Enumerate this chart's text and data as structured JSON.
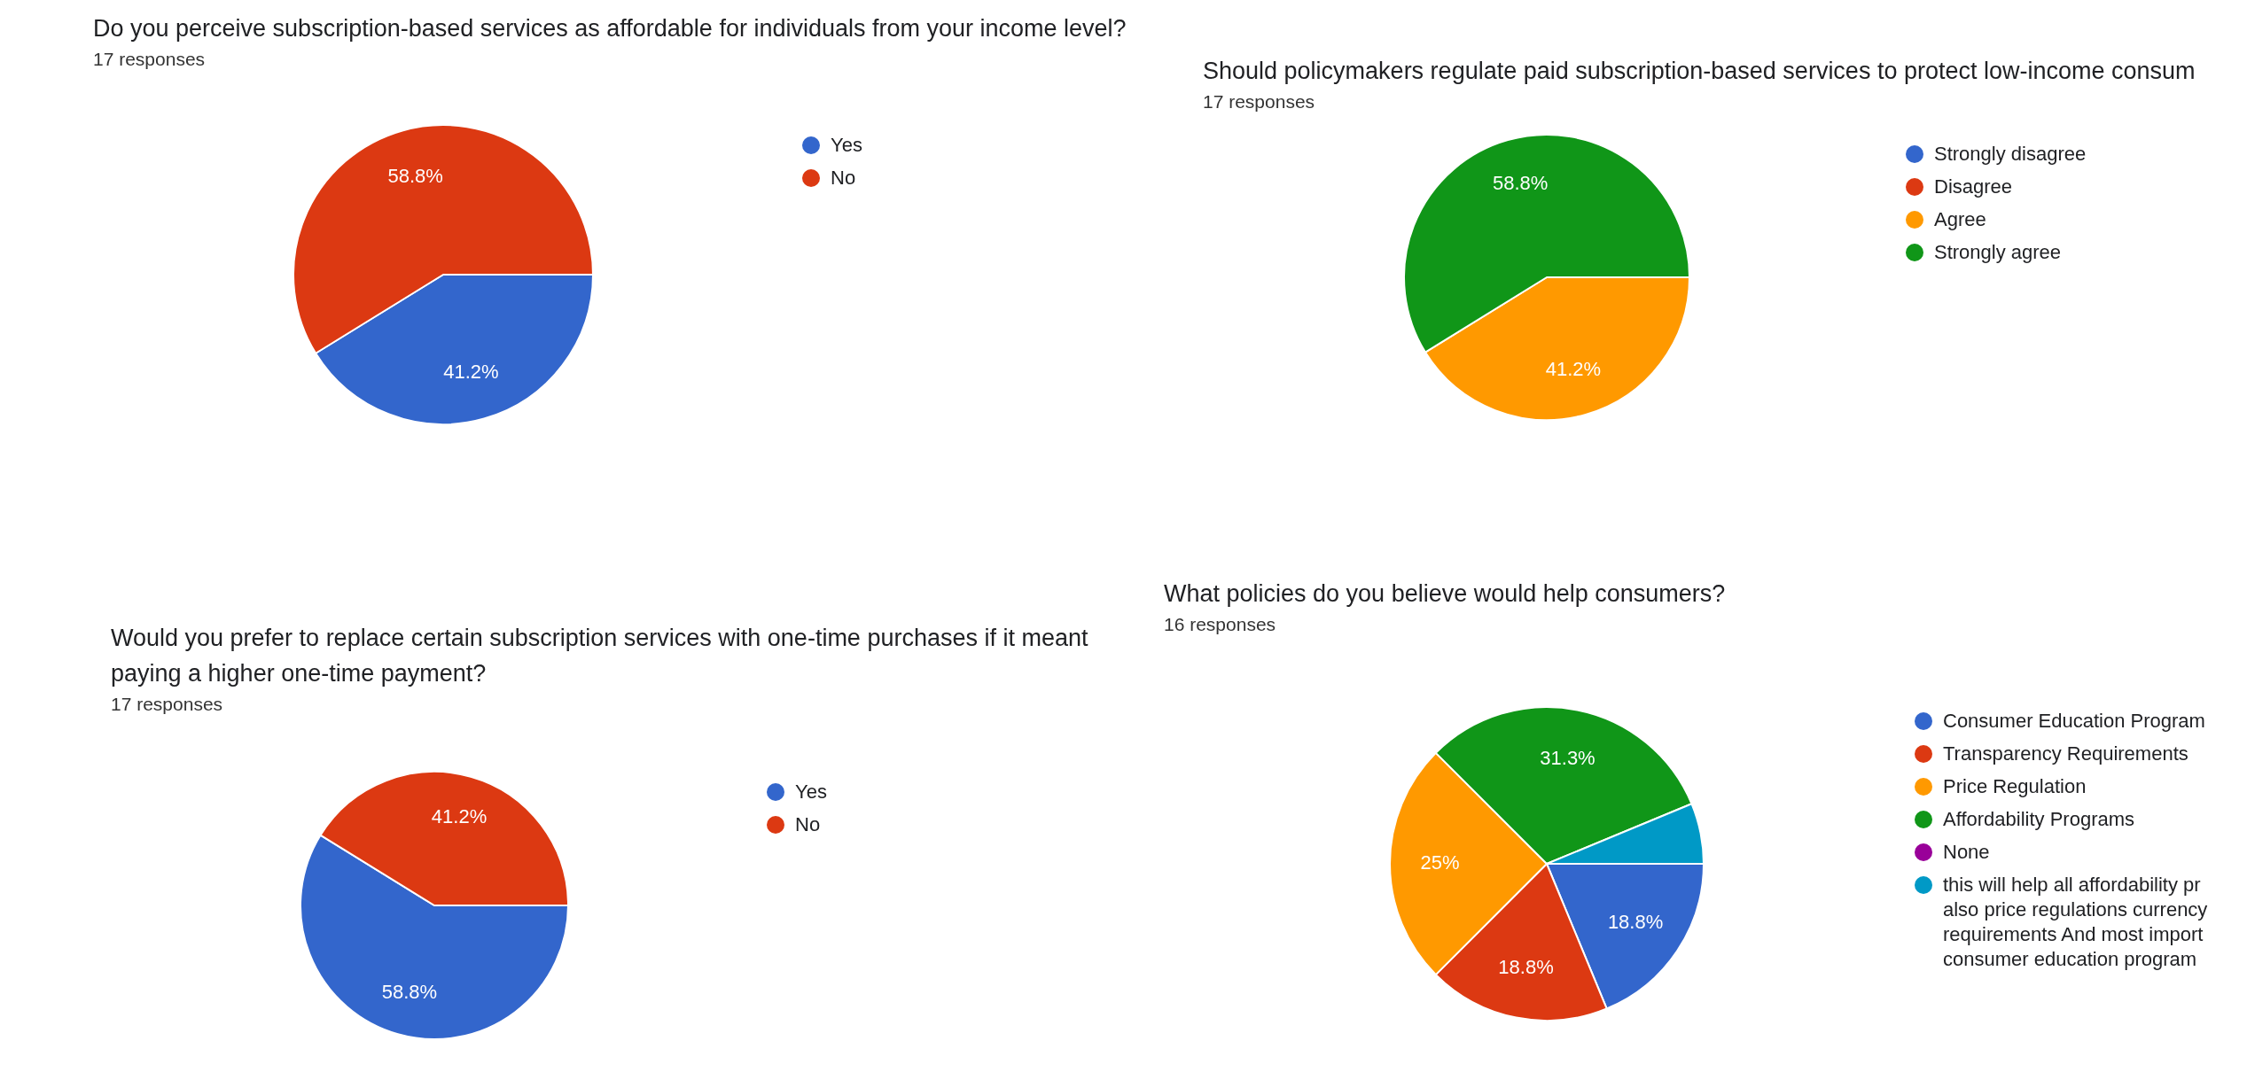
{
  "chart_data": [
    {
      "type": "pie",
      "title": "Do you perceive subscription-based services as affordable for individuals from your income level?",
      "subtitle": "17 responses",
      "categories": [
        "Yes",
        "No"
      ],
      "values": [
        41.2,
        58.8
      ],
      "colors": [
        "#3366cc",
        "#dc3912"
      ],
      "value_labels": [
        "41.2%",
        "58.8%"
      ],
      "legend": "right"
    },
    {
      "type": "pie",
      "title": "Should policymakers regulate paid subscription-based services to protect low-income consum",
      "subtitle": "17 responses",
      "categories": [
        "Strongly disagree",
        "Disagree",
        "Agree",
        "Strongly agree"
      ],
      "values": [
        0,
        0,
        41.2,
        58.8
      ],
      "colors": [
        "#3366cc",
        "#dc3912",
        "#ff9900",
        "#109618"
      ],
      "value_labels": [
        null,
        null,
        "41.2%",
        "58.8%"
      ],
      "legend": "right"
    },
    {
      "type": "pie",
      "title": "Would you prefer to replace certain subscription services with one-time purchases if it meant paying a higher one-time payment?",
      "subtitle": "17 responses",
      "categories": [
        "Yes",
        "No"
      ],
      "values": [
        58.8,
        41.2
      ],
      "colors": [
        "#3366cc",
        "#dc3912"
      ],
      "value_labels": [
        "58.8%",
        "41.2%"
      ],
      "legend": "right"
    },
    {
      "type": "pie",
      "title": "What policies do you believe would help consumers?",
      "subtitle": "16 responses",
      "categories": [
        "Consumer Education Program",
        "Transparency Requirements",
        "Price Regulation",
        "Affordability Programs",
        "None",
        "this will help all affordability pr also price regulations currency requirements And most import consumer education program"
      ],
      "values": [
        18.75,
        18.75,
        25,
        31.25,
        0,
        6.25
      ],
      "colors": [
        "#3366cc",
        "#dc3912",
        "#ff9900",
        "#109618",
        "#990099",
        "#0099c6"
      ],
      "value_labels": [
        "18.8%",
        "18.8%",
        "25%",
        "31.3%",
        null,
        null
      ],
      "legend": "right"
    }
  ]
}
